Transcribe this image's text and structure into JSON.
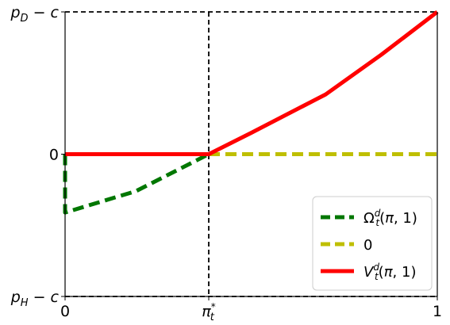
{
  "chart_data": {
    "type": "line",
    "x_ticks": [
      {
        "value": 0,
        "label": "0"
      },
      {
        "value": 0.386,
        "label": "π*ₜ"
      },
      {
        "value": 1,
        "label": "1"
      }
    ],
    "y_ticks": [
      {
        "value": 1,
        "label": "p_D − c"
      },
      {
        "value": 0,
        "label": "0"
      },
      {
        "value": -1,
        "label": "p_H − c"
      }
    ],
    "xlim": [
      0,
      1
    ],
    "ylim": [
      -1,
      1
    ],
    "reference_lines": [
      {
        "axis": "x",
        "value": 0.386,
        "style": "dashed",
        "color": "#000000"
      },
      {
        "axis": "y",
        "value": 1,
        "style": "dashed",
        "color": "#000000"
      },
      {
        "axis": "y",
        "value": -1,
        "style": "dashed",
        "color": "#000000"
      }
    ],
    "series": [
      {
        "name": "Ωᵈₜ(π, 1)",
        "color": "#007700",
        "style": "dashed",
        "x": [
          0,
          0,
          0.19,
          0.386
        ],
        "y": [
          0,
          -0.41,
          -0.26,
          0
        ]
      },
      {
        "name": "0",
        "color": "#bfbf00",
        "style": "dashed",
        "x": [
          0.386,
          1
        ],
        "y": [
          0,
          0
        ]
      },
      {
        "name": "Vᵈₜ(π, 1)",
        "color": "#ff0000",
        "style": "solid",
        "x": [
          0,
          0.386,
          0.5,
          0.7,
          0.85,
          1
        ],
        "y": [
          0,
          0,
          0.15,
          0.42,
          0.7,
          1
        ]
      }
    ],
    "legend_position": "lower-right",
    "grid": false
  }
}
